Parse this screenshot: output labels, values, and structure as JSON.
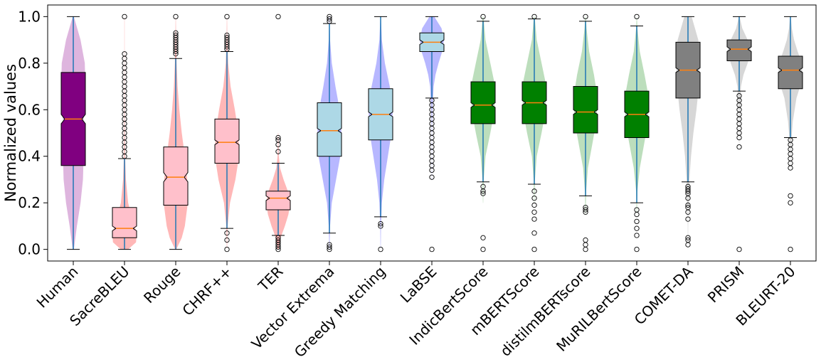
{
  "chart_data": {
    "type": "violin-box",
    "title": "",
    "xlabel": "",
    "ylabel": "Normalized values",
    "ylim": [
      -0.05,
      1.05
    ],
    "yticks": [
      0.0,
      0.2,
      0.4,
      0.6,
      0.8,
      1.0
    ],
    "ytick_labels": [
      "0.0",
      "0.2",
      "0.4",
      "0.6",
      "0.8",
      "1.0"
    ],
    "colors": {
      "purple": "#800080",
      "purple_violin": "#d8a8d8",
      "pink": "#ffc0cb",
      "red_violin": "#ffaaaa",
      "lightblue": "#add8e6",
      "blue_violin": "#aaaaff",
      "green": "#008000",
      "green_violin": "#b0d8b0",
      "gray": "#808080",
      "gray_violin": "#d0d0d0",
      "median": "#ff7f0e",
      "whisker": "#1f77b4"
    },
    "categories": [
      {
        "label": "Human",
        "q1": 0.36,
        "median": 0.56,
        "q3": 0.76,
        "whislo": 0.0,
        "whishi": 1.0,
        "notch_lo": 0.54,
        "notch_hi": 0.58,
        "box": "purple",
        "violin": "purple_violin",
        "violin_y": [
          0.0,
          0.1,
          0.2,
          0.3,
          0.4,
          0.5,
          0.6,
          0.7,
          0.8,
          0.9,
          1.0
        ],
        "violin_w": [
          0.05,
          0.3,
          0.6,
          0.8,
          0.85,
          0.8,
          0.9,
          1.0,
          0.95,
          0.6,
          0.05
        ],
        "outliers": []
      },
      {
        "label": "SacreBLEU",
        "q1": 0.05,
        "median": 0.09,
        "q3": 0.18,
        "whislo": 0.0,
        "whishi": 0.39,
        "notch_lo": 0.08,
        "notch_hi": 0.1,
        "box": "pink",
        "violin": "red_violin",
        "violin_y": [
          0.0,
          0.03,
          0.06,
          0.1,
          0.15,
          0.2,
          0.3,
          0.4,
          0.55,
          0.7,
          0.85,
          1.0
        ],
        "violin_w": [
          0.3,
          0.95,
          1.0,
          0.85,
          0.55,
          0.3,
          0.12,
          0.05,
          0.03,
          0.02,
          0.01,
          0.01
        ],
        "outliers": [
          0.4,
          0.42,
          0.44,
          0.46,
          0.48,
          0.5,
          0.52,
          0.54,
          0.56,
          0.58,
          0.6,
          0.62,
          0.64,
          0.66,
          0.68,
          0.7,
          0.72,
          0.74,
          0.76,
          0.78,
          0.8,
          0.82,
          0.84,
          1.0
        ]
      },
      {
        "label": "Rouge",
        "q1": 0.19,
        "median": 0.31,
        "q3": 0.44,
        "whislo": 0.0,
        "whishi": 0.82,
        "notch_lo": 0.29,
        "notch_hi": 0.33,
        "box": "pink",
        "violin": "red_violin",
        "violin_y": [
          0.0,
          0.05,
          0.1,
          0.2,
          0.3,
          0.4,
          0.5,
          0.6,
          0.7,
          0.8,
          0.9,
          1.0
        ],
        "violin_w": [
          0.05,
          0.5,
          0.75,
          1.0,
          0.95,
          0.75,
          0.5,
          0.3,
          0.15,
          0.07,
          0.03,
          0.01
        ],
        "outliers": [
          0.84,
          0.85,
          0.86,
          0.87,
          0.88,
          0.89,
          0.9,
          0.91,
          0.92,
          0.93,
          1.0
        ]
      },
      {
        "label": "CHRF++",
        "q1": 0.37,
        "median": 0.46,
        "q3": 0.56,
        "whislo": 0.09,
        "whishi": 0.85,
        "notch_lo": 0.45,
        "notch_hi": 0.47,
        "box": "pink",
        "violin": "red_violin",
        "violin_y": [
          0.0,
          0.1,
          0.2,
          0.3,
          0.4,
          0.5,
          0.6,
          0.7,
          0.8,
          0.9,
          1.0
        ],
        "violin_w": [
          0.01,
          0.05,
          0.25,
          0.7,
          1.0,
          0.95,
          0.65,
          0.3,
          0.1,
          0.03,
          0.01
        ],
        "outliers": [
          0.0,
          0.04,
          0.07,
          0.86,
          0.87,
          0.88,
          0.89,
          0.9,
          0.91,
          0.92,
          1.0
        ]
      },
      {
        "label": "TER",
        "q1": 0.17,
        "median": 0.22,
        "q3": 0.25,
        "whislo": 0.06,
        "whishi": 0.37,
        "notch_lo": 0.21,
        "notch_hi": 0.23,
        "box": "pink",
        "violin": "red_violin",
        "violin_y": [
          0.0,
          0.05,
          0.1,
          0.15,
          0.2,
          0.25,
          0.3,
          0.35,
          0.4,
          0.5
        ],
        "violin_w": [
          0.05,
          0.2,
          0.55,
          0.85,
          1.0,
          0.8,
          0.45,
          0.15,
          0.05,
          0.01
        ],
        "outliers": [
          0.0,
          0.01,
          0.02,
          0.03,
          0.04,
          0.05,
          0.42,
          0.45,
          0.47,
          0.48,
          1.0
        ]
      },
      {
        "label": "Vector Extrema",
        "q1": 0.4,
        "median": 0.51,
        "q3": 0.63,
        "whislo": 0.07,
        "whishi": 0.97,
        "notch_lo": 0.5,
        "notch_hi": 0.52,
        "box": "lightblue",
        "violin": "blue_violin",
        "violin_y": [
          0.0,
          0.1,
          0.2,
          0.3,
          0.4,
          0.5,
          0.6,
          0.7,
          0.8,
          0.9,
          1.0
        ],
        "violin_w": [
          0.01,
          0.05,
          0.2,
          0.55,
          0.9,
          1.0,
          0.85,
          0.5,
          0.2,
          0.05,
          0.01
        ],
        "outliers": [
          0.0,
          0.01,
          0.02,
          0.98,
          0.99,
          1.0
        ]
      },
      {
        "label": "Greedy Matching",
        "q1": 0.47,
        "median": 0.58,
        "q3": 0.69,
        "whislo": 0.14,
        "whishi": 1.0,
        "notch_lo": 0.57,
        "notch_hi": 0.59,
        "box": "lightblue",
        "violin": "blue_violin",
        "violin_y": [
          0.0,
          0.1,
          0.2,
          0.3,
          0.4,
          0.5,
          0.6,
          0.7,
          0.8,
          0.9,
          1.0
        ],
        "violin_w": [
          0.01,
          0.03,
          0.1,
          0.3,
          0.6,
          0.9,
          1.0,
          0.75,
          0.35,
          0.1,
          0.02
        ],
        "outliers": [
          0.0,
          0.1,
          0.11
        ]
      },
      {
        "label": "LaBSE",
        "q1": 0.85,
        "median": 0.89,
        "q3": 0.93,
        "whislo": 0.65,
        "whishi": 1.0,
        "notch_lo": 0.88,
        "notch_hi": 0.9,
        "box": "lightblue",
        "violin": "blue_violin",
        "violin_y": [
          0.3,
          0.5,
          0.6,
          0.7,
          0.75,
          0.8,
          0.85,
          0.9,
          0.95,
          1.0
        ],
        "violin_w": [
          0.01,
          0.02,
          0.05,
          0.15,
          0.3,
          0.55,
          0.85,
          1.0,
          0.8,
          0.2
        ],
        "outliers": [
          0.0,
          0.31,
          0.34,
          0.36,
          0.38,
          0.4,
          0.42,
          0.44,
          0.46,
          0.48,
          0.5,
          0.52,
          0.54,
          0.56,
          0.58,
          0.6,
          0.62,
          0.64
        ]
      },
      {
        "label": "IndicBertScore",
        "q1": 0.54,
        "median": 0.62,
        "q3": 0.72,
        "whislo": 0.29,
        "whishi": 0.98,
        "notch_lo": 0.61,
        "notch_hi": 0.63,
        "box": "green",
        "violin": "green_violin",
        "violin_y": [
          0.2,
          0.3,
          0.4,
          0.5,
          0.6,
          0.7,
          0.8,
          0.9,
          1.0
        ],
        "violin_w": [
          0.01,
          0.05,
          0.2,
          0.6,
          0.95,
          1.0,
          0.6,
          0.2,
          0.03
        ],
        "outliers": [
          0.0,
          0.05,
          0.24,
          0.25,
          0.27,
          1.0
        ]
      },
      {
        "label": "mBERTScore",
        "q1": 0.54,
        "median": 0.63,
        "q3": 0.72,
        "whislo": 0.28,
        "whishi": 0.99,
        "notch_lo": 0.62,
        "notch_hi": 0.64,
        "box": "green",
        "violin": "green_violin",
        "violin_y": [
          0.2,
          0.3,
          0.4,
          0.5,
          0.6,
          0.7,
          0.8,
          0.9,
          1.0
        ],
        "violin_w": [
          0.01,
          0.05,
          0.2,
          0.6,
          0.95,
          1.0,
          0.6,
          0.2,
          0.03
        ],
        "outliers": [
          0.0,
          0.07,
          0.13,
          0.16,
          0.19,
          0.22,
          0.25,
          1.0
        ]
      },
      {
        "label": "distilmBERTscore",
        "q1": 0.5,
        "median": 0.59,
        "q3": 0.7,
        "whislo": 0.23,
        "whishi": 0.98,
        "notch_lo": 0.58,
        "notch_hi": 0.6,
        "box": "green",
        "violin": "green_violin",
        "violin_y": [
          0.15,
          0.25,
          0.35,
          0.45,
          0.55,
          0.65,
          0.75,
          0.85,
          0.95,
          1.0
        ],
        "violin_w": [
          0.01,
          0.05,
          0.2,
          0.55,
          0.9,
          1.0,
          0.7,
          0.3,
          0.08,
          0.02
        ],
        "outliers": [
          0.0,
          0.02,
          0.04,
          0.16,
          0.17,
          0.18,
          1.0
        ]
      },
      {
        "label": "MuRILBertScore",
        "q1": 0.48,
        "median": 0.58,
        "q3": 0.68,
        "whislo": 0.2,
        "whishi": 0.96,
        "notch_lo": 0.57,
        "notch_hi": 0.59,
        "box": "green",
        "violin": "green_violin",
        "violin_y": [
          0.15,
          0.25,
          0.35,
          0.45,
          0.55,
          0.65,
          0.75,
          0.85,
          0.95,
          1.0
        ],
        "violin_w": [
          0.01,
          0.05,
          0.25,
          0.6,
          0.95,
          1.0,
          0.65,
          0.25,
          0.05,
          0.01
        ],
        "outliers": [
          0.0,
          0.06,
          0.09,
          0.12,
          0.15,
          0.17,
          1.0
        ]
      },
      {
        "label": "COMET-DA",
        "q1": 0.65,
        "median": 0.77,
        "q3": 0.89,
        "whislo": 0.29,
        "whishi": 1.0,
        "notch_lo": 0.76,
        "notch_hi": 0.78,
        "box": "gray",
        "violin": "gray_violin",
        "violin_y": [
          0.0,
          0.1,
          0.2,
          0.3,
          0.4,
          0.5,
          0.6,
          0.7,
          0.8,
          0.9,
          1.0
        ],
        "violin_w": [
          0.01,
          0.02,
          0.05,
          0.12,
          0.25,
          0.45,
          0.7,
          0.9,
          1.0,
          0.85,
          0.3
        ],
        "outliers": [
          0.02,
          0.04,
          0.05,
          0.13,
          0.16,
          0.18,
          0.19,
          0.22,
          0.24,
          0.25,
          0.26,
          0.27
        ]
      },
      {
        "label": "PRISM",
        "q1": 0.81,
        "median": 0.86,
        "q3": 0.9,
        "whislo": 0.68,
        "whishi": 1.0,
        "notch_lo": 0.85,
        "notch_hi": 0.87,
        "box": "gray",
        "violin": "gray_violin",
        "violin_y": [
          0.45,
          0.6,
          0.7,
          0.75,
          0.8,
          0.85,
          0.9,
          0.95,
          1.0
        ],
        "violin_w": [
          0.01,
          0.05,
          0.15,
          0.35,
          0.7,
          1.0,
          0.7,
          0.25,
          0.03
        ],
        "outliers": [
          0.0,
          0.44,
          0.48,
          0.5,
          0.52,
          0.54,
          0.56,
          0.58,
          0.6,
          0.62,
          0.64,
          0.66
        ]
      },
      {
        "label": "BLEURT-20",
        "q1": 0.69,
        "median": 0.77,
        "q3": 0.83,
        "whislo": 0.48,
        "whishi": 1.0,
        "notch_lo": 0.76,
        "notch_hi": 0.78,
        "box": "gray",
        "violin": "gray_violin",
        "violin_y": [
          0.35,
          0.45,
          0.55,
          0.65,
          0.7,
          0.75,
          0.8,
          0.85,
          0.9,
          0.95,
          1.0
        ],
        "violin_w": [
          0.01,
          0.05,
          0.2,
          0.5,
          0.8,
          1.0,
          0.95,
          0.6,
          0.3,
          0.12,
          0.03
        ],
        "outliers": [
          0.0,
          0.2,
          0.23,
          0.35,
          0.37,
          0.39,
          0.41,
          0.43,
          0.45,
          0.47
        ]
      }
    ]
  }
}
